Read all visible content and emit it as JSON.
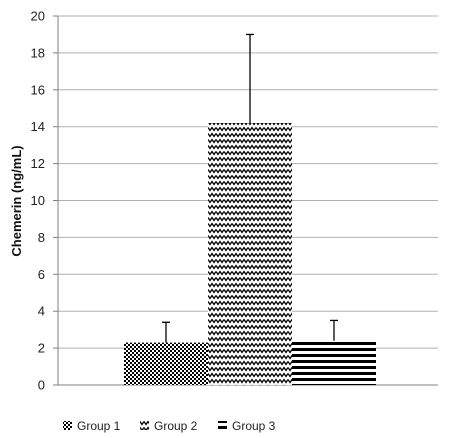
{
  "chart_data": {
    "type": "bar",
    "title": "",
    "xlabel": "",
    "ylabel": "Chemerin (ng/mL)",
    "ylim": [
      0,
      20
    ],
    "yticks": [
      0,
      2,
      4,
      6,
      8,
      10,
      12,
      14,
      16,
      18,
      20
    ],
    "grid": "horizontal",
    "legend": "bottom",
    "categories": [
      "Group 1",
      "Group 2",
      "Group 3"
    ],
    "values": [
      2.3,
      14.2,
      2.4
    ],
    "error_upper": [
      3.4,
      19.0,
      3.5
    ],
    "patterns": [
      "dense-dots",
      "zigzag",
      "horizontal-stripes"
    ],
    "colors": {
      "fill": "#000000",
      "grid": "#b0b0b0",
      "axis": "#808080"
    }
  }
}
